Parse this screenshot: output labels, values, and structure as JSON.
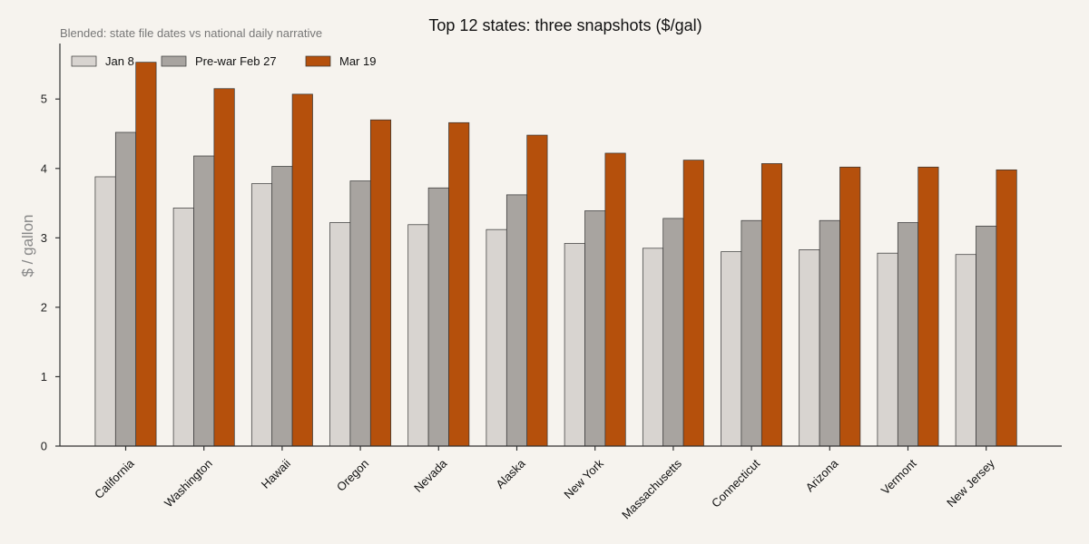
{
  "chart_data": {
    "type": "bar",
    "title": "Top 12 states: three snapshots ($/gal)",
    "subtitle": "Blended: state file dates vs national daily narrative",
    "xlabel": "",
    "ylabel": "$ / gallon",
    "ylim": [
      0,
      5.8
    ],
    "yticks": [
      0,
      1,
      2,
      3,
      4,
      5
    ],
    "grid": false,
    "legend_position": "top-left",
    "categories": [
      "California",
      "Washington",
      "Hawaii",
      "Oregon",
      "Nevada",
      "Alaska",
      "New York",
      "Massachusetts",
      "Connecticut",
      "Arizona",
      "Vermont",
      "New Jersey"
    ],
    "series": [
      {
        "name": "Jan 8",
        "color": "#d8d4d0",
        "values": [
          3.88,
          3.43,
          3.78,
          3.22,
          3.19,
          3.12,
          2.92,
          2.85,
          2.8,
          2.83,
          2.78,
          2.76
        ]
      },
      {
        "name": "Pre-war Feb 27",
        "color": "#a8a4a0",
        "values": [
          4.52,
          4.18,
          4.03,
          3.82,
          3.72,
          3.62,
          3.39,
          3.28,
          3.25,
          3.25,
          3.22,
          3.17
        ]
      },
      {
        "name": "Mar 19",
        "color": "#b5500c",
        "values": [
          5.53,
          5.15,
          5.07,
          4.7,
          4.66,
          4.48,
          4.22,
          4.12,
          4.07,
          4.02,
          4.02,
          3.98
        ]
      }
    ]
  }
}
